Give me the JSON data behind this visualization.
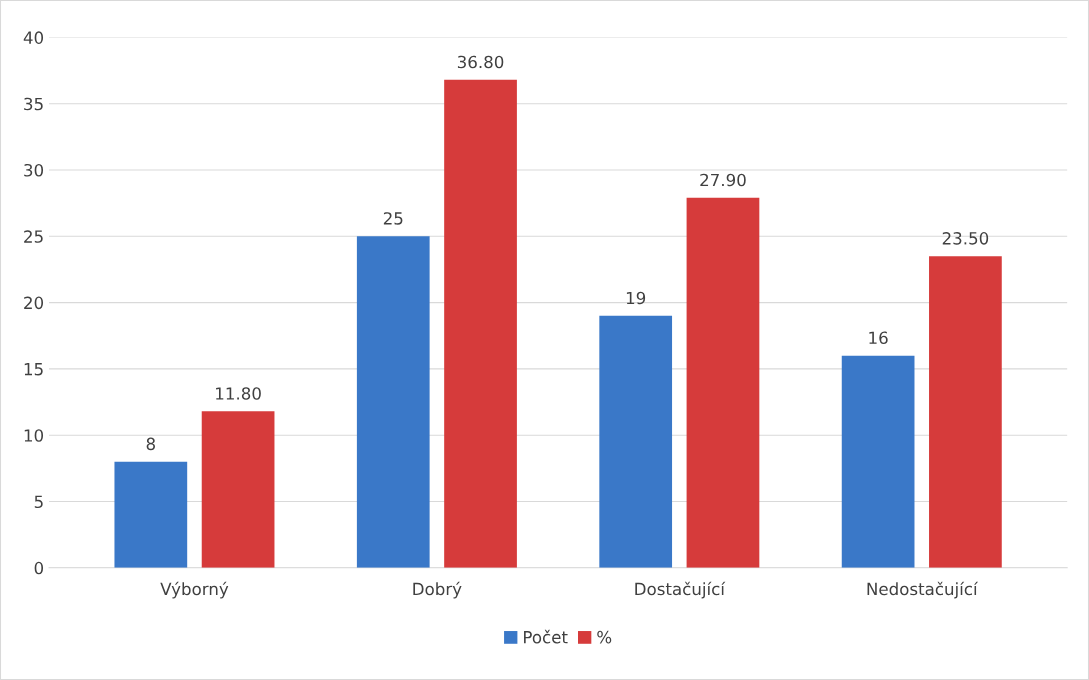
{
  "chart_data": {
    "type": "bar",
    "categories": [
      "Výborný",
      "Dobrý",
      "Dostačující",
      "Nedostačující"
    ],
    "series": [
      {
        "name": "Počet",
        "color": "#3a78c8",
        "values": [
          8,
          25,
          19,
          16
        ],
        "value_labels": [
          "8",
          "25",
          "19",
          "16"
        ]
      },
      {
        "name": "%",
        "color": "#d63b3b",
        "values": [
          11.8,
          36.8,
          27.9,
          23.5
        ],
        "value_labels": [
          "11.80",
          "36.80",
          "27.90",
          "23.50"
        ]
      }
    ],
    "ylim": [
      0,
      40
    ],
    "yticks": [
      0,
      5,
      10,
      15,
      20,
      25,
      30,
      35,
      40
    ],
    "grid": "y",
    "legend": "bottom"
  }
}
